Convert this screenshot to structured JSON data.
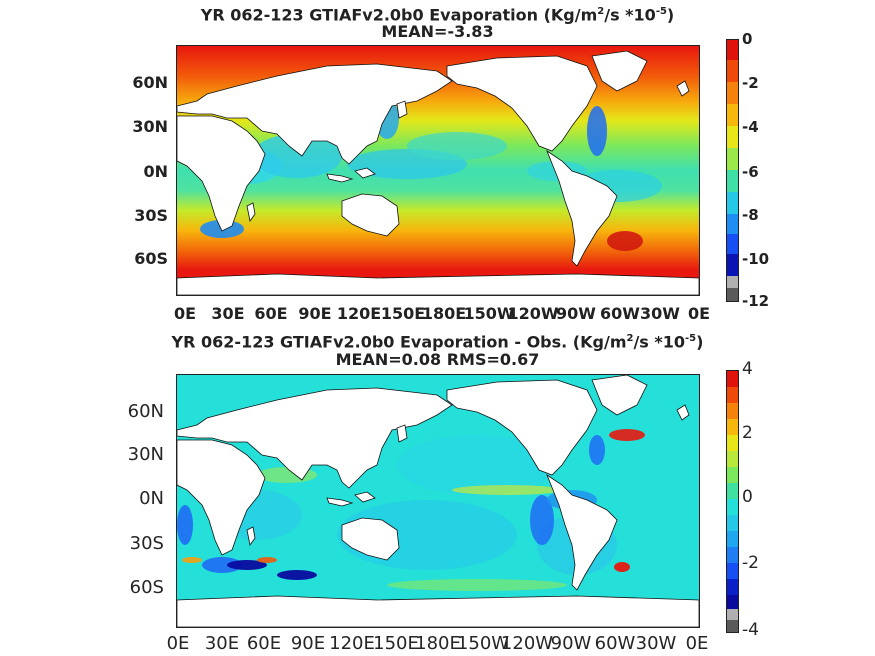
{
  "panel1": {
    "title_prefix": "YR 062-123 GTIAFv2.0b0  Evaporation (Kg/m",
    "title_sup1": "2",
    "title_mid": "/s *10",
    "title_sup2": "-5",
    "title_suffix": ")",
    "subtitle": "MEAN=-3.83",
    "lat_labels": [
      "60N",
      "30N",
      "0N",
      "30S",
      "60S"
    ],
    "lon_labels": [
      "0E",
      "30E",
      "60E",
      "90E",
      "120E",
      "150E",
      "180E",
      "150W",
      "120W",
      "90W",
      "60W",
      "30W",
      "0E"
    ],
    "colorbar_labels": [
      "0",
      "-2",
      "-4",
      "-6",
      "-8",
      "-10",
      "-12"
    ]
  },
  "panel2": {
    "title_prefix": "YR 062-123 GTIAFv2.0b0 Evaporation - Obs. (Kg/m",
    "title_sup1": "2",
    "title_mid": "/s *10",
    "title_sup2": "-5",
    "title_suffix": ")",
    "subtitle": "MEAN=0.08   RMS=0.67",
    "lat_labels": [
      "60N",
      "30N",
      "0N",
      "30S",
      "60S"
    ],
    "lon_labels": [
      "0E",
      "30E",
      "60E",
      "90E",
      "120E",
      "150E",
      "180E",
      "150W",
      "120W",
      "90W",
      "60W",
      "30W",
      "0E"
    ],
    "colorbar_labels": [
      "4",
      "2",
      "0",
      "-2",
      "-4"
    ]
  },
  "colors": {
    "ocean_high": "#e8170f",
    "ocean_mid": "#f4e00f",
    "ocean_cyan": "#22d9e0",
    "ocean_blue": "#1f6cf5",
    "ocean_dark": "#0a0a9e",
    "land": "#ffffff"
  }
}
